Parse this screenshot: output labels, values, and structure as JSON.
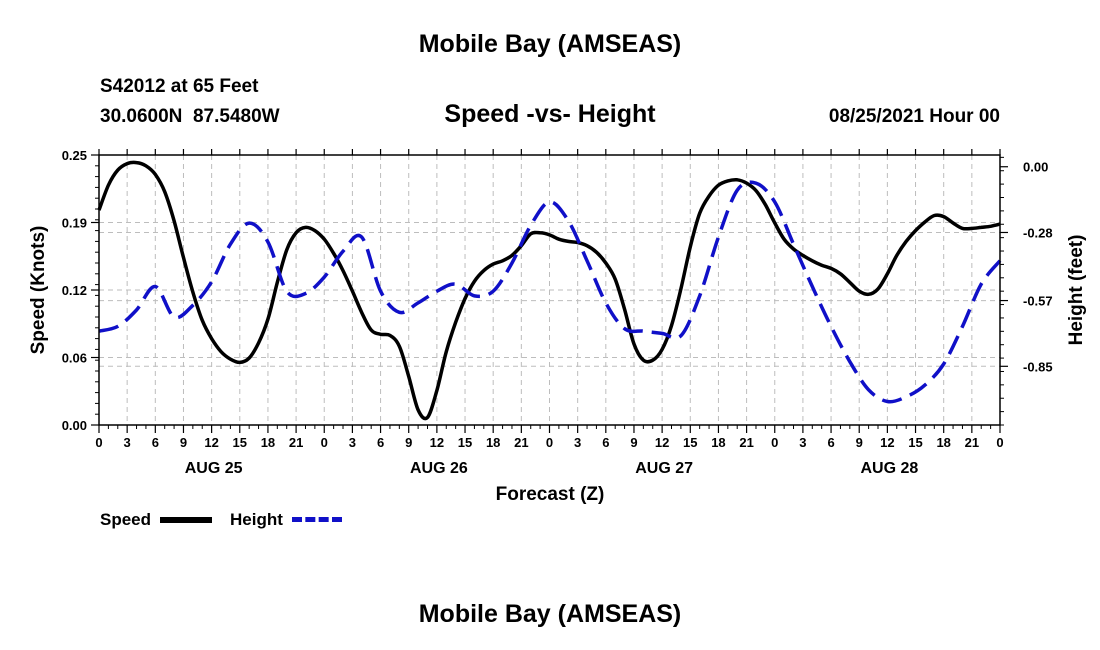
{
  "header": {
    "top_title": "Mobile Bay (AMSEAS)",
    "station_line": "S42012 at 65 Feet",
    "coords_line": "30.0600N  87.5480W",
    "plot_title": "Speed -vs- Height",
    "datetime": "08/25/2021 Hour 00"
  },
  "footer": {
    "bottom_title": "Mobile Bay (AMSEAS)"
  },
  "legend": {
    "speed_label": "Speed",
    "height_label": "Height"
  },
  "colors": {
    "speed": "#000000",
    "height": "#1010c8",
    "grid": "#bdbdbd"
  },
  "chart_data": {
    "type": "line",
    "title": "Speed -vs- Height",
    "xlabel": "Forecast (Z)",
    "ylabel_left": "Speed (Knots)",
    "ylabel_right": "Height (feet)",
    "x_range_hours": [
      0,
      96
    ],
    "x_tick_labels": [
      "0",
      "3",
      "6",
      "9",
      "12",
      "15",
      "18",
      "21",
      "0",
      "3",
      "6",
      "9",
      "12",
      "15",
      "18",
      "21",
      "0",
      "3",
      "6",
      "9",
      "12",
      "15",
      "18",
      "21",
      "0",
      "3",
      "6",
      "9",
      "12",
      "15",
      "18",
      "21",
      "0"
    ],
    "day_labels": [
      {
        "hour": 12,
        "label": "AUG 25"
      },
      {
        "hour": 36,
        "label": "AUG 26"
      },
      {
        "hour": 60,
        "label": "AUG 27"
      },
      {
        "hour": 84,
        "label": "AUG 28"
      }
    ],
    "left_axis": {
      "min": 0.0,
      "max": 0.25,
      "ticks": [
        "0.00",
        "0.06",
        "0.12",
        "0.19",
        "0.25"
      ],
      "tick_values": [
        0.0,
        0.0625,
        0.125,
        0.1875,
        0.25
      ]
    },
    "right_axis": {
      "min": -1.1,
      "max": 0.05,
      "ticks": [
        "0.00",
        "-0.28",
        "-0.57",
        "-0.85"
      ],
      "tick_values": [
        0.0,
        -0.28,
        -0.57,
        -0.85
      ]
    },
    "series": [
      {
        "name": "Speed",
        "axis": "left",
        "style": "solid",
        "x": [
          0,
          1,
          2,
          3,
          4,
          5,
          6,
          7,
          8,
          9,
          10,
          11,
          12,
          13,
          14,
          15,
          16,
          17,
          18,
          19,
          20,
          21,
          22,
          23,
          24,
          25,
          26,
          27,
          28,
          29,
          30,
          31,
          32,
          33,
          34,
          35,
          36,
          37,
          38,
          39,
          40,
          41,
          42,
          43,
          44,
          45,
          46,
          47,
          48,
          49,
          50,
          51,
          52,
          53,
          54,
          55,
          56,
          57,
          58,
          59,
          60,
          61,
          62,
          63,
          64,
          65,
          66,
          67,
          68,
          69,
          70,
          71,
          72,
          73,
          74,
          75,
          76,
          77,
          78,
          79,
          80,
          81,
          82,
          83,
          84,
          85,
          86,
          87,
          88,
          89,
          90,
          91,
          92,
          93,
          94,
          95,
          96
        ],
        "values": [
          0.199,
          0.222,
          0.236,
          0.242,
          0.243,
          0.24,
          0.232,
          0.216,
          0.189,
          0.155,
          0.123,
          0.097,
          0.08,
          0.068,
          0.061,
          0.058,
          0.062,
          0.076,
          0.098,
          0.132,
          0.162,
          0.178,
          0.183,
          0.18,
          0.172,
          0.159,
          0.143,
          0.124,
          0.104,
          0.088,
          0.084,
          0.083,
          0.073,
          0.045,
          0.014,
          0.007,
          0.032,
          0.068,
          0.095,
          0.117,
          0.133,
          0.143,
          0.149,
          0.152,
          0.157,
          0.166,
          0.177,
          0.178,
          0.176,
          0.172,
          0.17,
          0.169,
          0.166,
          0.16,
          0.15,
          0.135,
          0.107,
          0.075,
          0.06,
          0.06,
          0.07,
          0.092,
          0.126,
          0.165,
          0.196,
          0.212,
          0.222,
          0.226,
          0.227,
          0.224,
          0.217,
          0.204,
          0.187,
          0.172,
          0.163,
          0.157,
          0.152,
          0.148,
          0.145,
          0.14,
          0.132,
          0.124,
          0.121,
          0.126,
          0.14,
          0.157,
          0.17,
          0.18,
          0.188,
          0.194,
          0.193,
          0.187,
          0.182,
          0.182,
          0.183,
          0.184,
          0.186
        ]
      },
      {
        "name": "Height",
        "axis": "right",
        "style": "dashed",
        "x": [
          0,
          2,
          4,
          6,
          8,
          10,
          12,
          14,
          16,
          18,
          20,
          22,
          24,
          26,
          28,
          30,
          32,
          34,
          36,
          38,
          40,
          42,
          44,
          46,
          48,
          50,
          52,
          54,
          56,
          58,
          60,
          62,
          64,
          66,
          68,
          70,
          72,
          74,
          76,
          78,
          80,
          82,
          84,
          86,
          88,
          90,
          92,
          94,
          96
        ],
        "values": [
          -0.7,
          -0.68,
          -0.61,
          -0.51,
          -0.64,
          -0.59,
          -0.49,
          -0.33,
          -0.24,
          -0.32,
          -0.53,
          -0.54,
          -0.47,
          -0.36,
          -0.3,
          -0.53,
          -0.62,
          -0.58,
          -0.53,
          -0.5,
          -0.55,
          -0.53,
          -0.41,
          -0.25,
          -0.15,
          -0.23,
          -0.4,
          -0.58,
          -0.69,
          -0.7,
          -0.71,
          -0.72,
          -0.55,
          -0.3,
          -0.1,
          -0.07,
          -0.15,
          -0.33,
          -0.51,
          -0.68,
          -0.83,
          -0.95,
          -1.0,
          -0.98,
          -0.93,
          -0.84,
          -0.68,
          -0.5,
          -0.4
        ]
      }
    ],
    "grid": true,
    "legend_position": "bottom-left"
  }
}
